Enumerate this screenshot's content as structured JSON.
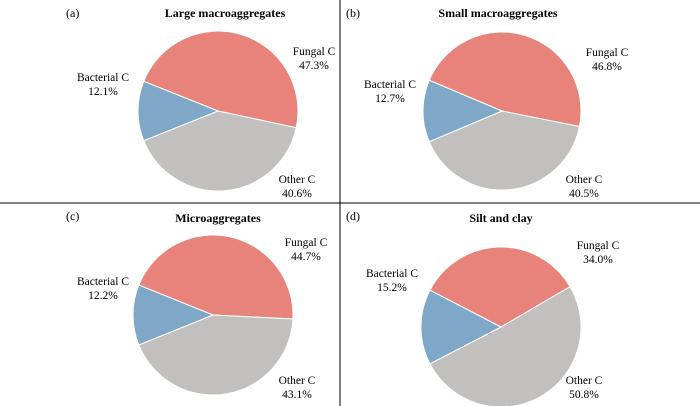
{
  "colors": {
    "fungal": "#e8837b",
    "bacterial": "#7ea7c8",
    "other": "#c2c0be",
    "divider": "#000000"
  },
  "chart_data": [
    {
      "type": "pie",
      "letter": "(a)",
      "title": "Large macroaggregates",
      "slices": [
        {
          "name": "Fungal C",
          "value": 47.3,
          "label": "47.3%",
          "color_key": "fungal"
        },
        {
          "name": "Other C",
          "value": 40.6,
          "label": "40.6%",
          "color_key": "other"
        },
        {
          "name": "Bacterial C",
          "value": 12.1,
          "label": "12.1%",
          "color_key": "bacterial"
        }
      ]
    },
    {
      "type": "pie",
      "letter": "(b)",
      "title": "Small macroaggregates",
      "slices": [
        {
          "name": "Fungal C",
          "value": 46.8,
          "label": "46.8%",
          "color_key": "fungal"
        },
        {
          "name": "Other C",
          "value": 40.5,
          "label": "40.5%",
          "color_key": "other"
        },
        {
          "name": "Bacterial C",
          "value": 12.7,
          "label": "12.7%",
          "color_key": "bacterial"
        }
      ]
    },
    {
      "type": "pie",
      "letter": "(c)",
      "title": "Microaggregates",
      "slices": [
        {
          "name": "Fungal C",
          "value": 44.7,
          "label": "44.7%",
          "color_key": "fungal"
        },
        {
          "name": "Other C",
          "value": 43.1,
          "label": "43.1%",
          "color_key": "other"
        },
        {
          "name": "Bacterial C",
          "value": 12.2,
          "label": "12.2%",
          "color_key": "bacterial"
        }
      ]
    },
    {
      "type": "pie",
      "letter": "(d)",
      "title": "Silt and clay",
      "slices": [
        {
          "name": "Fungal C",
          "value": 34.0,
          "label": "34.0%",
          "color_key": "fungal"
        },
        {
          "name": "Other C",
          "value": 50.8,
          "label": "50.8%",
          "color_key": "other"
        },
        {
          "name": "Bacterial C",
          "value": 15.2,
          "label": "15.2%",
          "color_key": "bacterial"
        }
      ]
    }
  ]
}
